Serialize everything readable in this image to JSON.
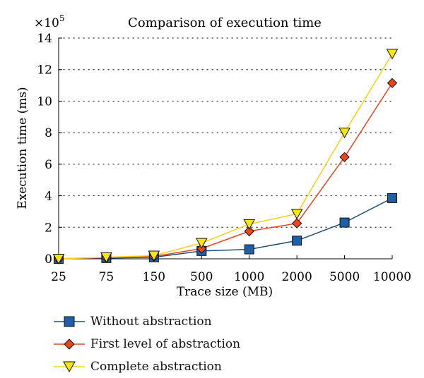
{
  "chart_data": {
    "type": "line",
    "title": "Comparison of execution time",
    "xlabel": "Trace size (MB)",
    "ylabel": "Execution time (ms)",
    "y_multiplier_label": "×10",
    "y_multiplier_exponent": "5",
    "categories": [
      "25",
      "75",
      "150",
      "500",
      "1000",
      "2000",
      "5000",
      "10000"
    ],
    "yticks": [
      "0",
      "2",
      "4",
      "6",
      "8",
      "10",
      "12",
      "14"
    ],
    "ylim": [
      0,
      14
    ],
    "grid": "horizontal-dotted",
    "legend_position": "bottom-left",
    "series": [
      {
        "name": "Without abstraction",
        "marker": "square",
        "line_color": "#1f4e79",
        "marker_color": "#1f5fa8",
        "values": [
          0.0,
          0.05,
          0.1,
          0.5,
          0.6,
          1.15,
          2.3,
          3.85
        ]
      },
      {
        "name": "First level of abstraction",
        "marker": "diamond",
        "line_color": "#e0461e",
        "marker_color": "#e8461c",
        "values": [
          0.0,
          0.08,
          0.15,
          0.65,
          1.75,
          2.25,
          6.45,
          11.15
        ]
      },
      {
        "name": "Complete abstraction",
        "marker": "triangle-down",
        "line_color": "#f2d11a",
        "marker_color": "#f7e41a",
        "values": [
          0.0,
          0.1,
          0.2,
          1.0,
          2.2,
          2.85,
          8.0,
          13.0
        ]
      }
    ]
  }
}
